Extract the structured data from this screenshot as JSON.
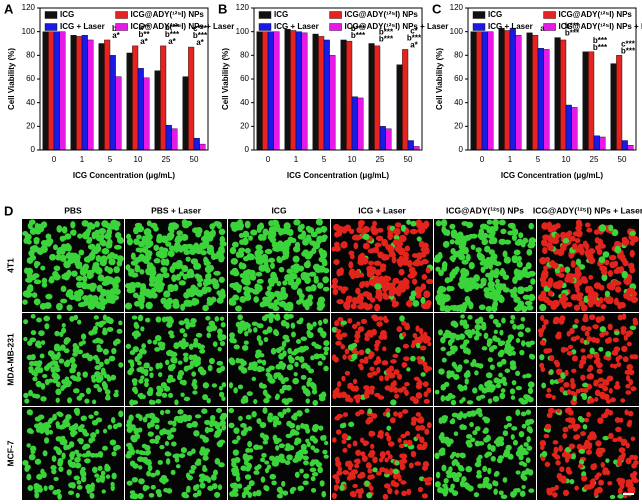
{
  "chart_data": [
    {
      "type": "bar",
      "panel": "A",
      "xlabel": "ICG Concentration (μg/mL)",
      "ylabel": "Cell Viability (%)",
      "categories": [
        "0",
        "1",
        "5",
        "10",
        "25",
        "50"
      ],
      "series": [
        {
          "name": "ICG",
          "color": "#111111",
          "values": [
            100,
            97,
            90,
            82,
            67,
            62
          ]
        },
        {
          "name": "ICG@ADY(¹²⁵I) NPs",
          "color": "#e8231f",
          "values": [
            100,
            96,
            93,
            88,
            88,
            87
          ]
        },
        {
          "name": "ICG + Laser",
          "color": "#1a1ae6",
          "values": [
            100,
            97,
            80,
            69,
            21,
            10
          ]
        },
        {
          "name": "ICG@ADY(¹²⁵I) NPs + Laser",
          "color": "#e61ae6",
          "values": [
            100,
            93,
            62,
            61,
            18,
            5
          ]
        }
      ],
      "annotations": [
        [],
        [],
        [
          "a*",
          "b*"
        ],
        [
          "a*",
          "b**",
          "a**"
        ],
        [
          "a*",
          "b***",
          "b***"
        ],
        [
          "a*",
          "b***",
          "c***"
        ]
      ],
      "ylim": [
        0,
        120
      ],
      "yticks": [
        0,
        20,
        40,
        60,
        80,
        100,
        120
      ]
    },
    {
      "type": "bar",
      "panel": "B",
      "xlabel": "ICG Concentration (μg/mL)",
      "ylabel": "Cell Viability (%)",
      "categories": [
        "0",
        "1",
        "5",
        "10",
        "25",
        "50"
      ],
      "series": [
        {
          "name": "ICG",
          "color": "#111111",
          "values": [
            100,
            102,
            98,
            93,
            90,
            72
          ]
        },
        {
          "name": "ICG@ADY(¹²⁵I) NPs",
          "color": "#e8231f",
          "values": [
            100,
            101,
            96,
            92,
            88,
            85
          ]
        },
        {
          "name": "ICG + Laser",
          "color": "#1a1ae6",
          "values": [
            100,
            100,
            93,
            45,
            20,
            8
          ]
        },
        {
          "name": "ICG@ADY(¹²⁵I) NPs + Laser",
          "color": "#e61ae6",
          "values": [
            100,
            99,
            80,
            44,
            18,
            3
          ]
        }
      ],
      "annotations": [
        [],
        [],
        [],
        [
          "b***",
          "b***"
        ],
        [
          "b***",
          "b***"
        ],
        [
          "a*",
          "b***",
          "c*"
        ]
      ],
      "ylim": [
        0,
        120
      ],
      "yticks": [
        0,
        20,
        40,
        60,
        80,
        100,
        120
      ]
    },
    {
      "type": "bar",
      "panel": "C",
      "xlabel": "ICG Concentration (μg/mL)",
      "ylabel": "Cell Viability (%)",
      "categories": [
        "0",
        "1",
        "5",
        "10",
        "25",
        "50"
      ],
      "series": [
        {
          "name": "ICG",
          "color": "#111111",
          "values": [
            100,
            103,
            99,
            95,
            83,
            73
          ]
        },
        {
          "name": "ICG@ADY(¹²⁵I) NPs",
          "color": "#e8231f",
          "values": [
            100,
            101,
            97,
            93,
            83,
            80
          ]
        },
        {
          "name": "ICG + Laser",
          "color": "#1a1ae6",
          "values": [
            100,
            103,
            86,
            38,
            12,
            8
          ]
        },
        {
          "name": "ICG@ADY(¹²⁵I) NPs + Laser",
          "color": "#e61ae6",
          "values": [
            100,
            97,
            85,
            36,
            11,
            4
          ]
        }
      ],
      "annotations": [
        [],
        [],
        [
          "a*"
        ],
        [
          "b***",
          "b***"
        ],
        [
          "b***",
          "b***"
        ],
        [
          "b***",
          "c***"
        ]
      ],
      "ylim": [
        0,
        120
      ],
      "yticks": [
        0,
        20,
        40,
        60,
        80,
        100,
        120
      ]
    }
  ],
  "panel_d": {
    "label": "D",
    "columns": [
      "PBS",
      "PBS + Laser",
      "ICG",
      "ICG + Laser",
      "ICG@ADY(¹²⁵I) NPs",
      "ICG@ADY(¹²⁵I) NPs + Laser"
    ],
    "rows": [
      "4T1",
      "MDA-MB-231",
      "MCF-7"
    ]
  }
}
